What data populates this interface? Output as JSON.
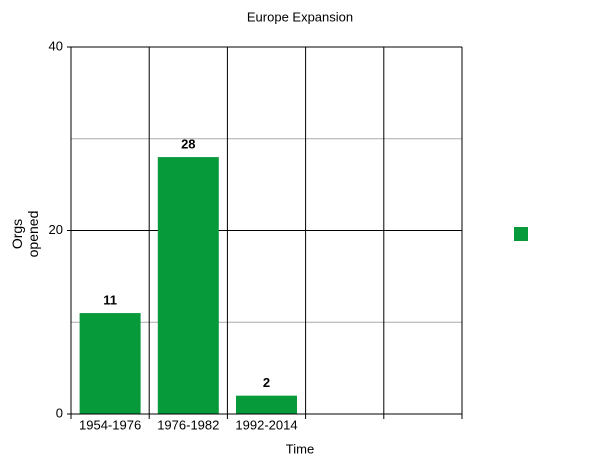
{
  "chart_data": {
    "type": "bar",
    "title": "Europe Expansion",
    "xlabel": "Time",
    "ylabel": "Orgs opened",
    "categories": [
      "1954-1976",
      "1976-1982",
      "1992-2014",
      null,
      null
    ],
    "values": [
      11,
      28,
      2,
      null,
      null
    ],
    "color": "#069a3a",
    "ylim": [
      0,
      40
    ],
    "yticks": [
      0,
      20,
      40
    ],
    "minor_yticks": [
      10,
      30
    ],
    "grid": true,
    "data_labels": true,
    "legend": "right"
  }
}
